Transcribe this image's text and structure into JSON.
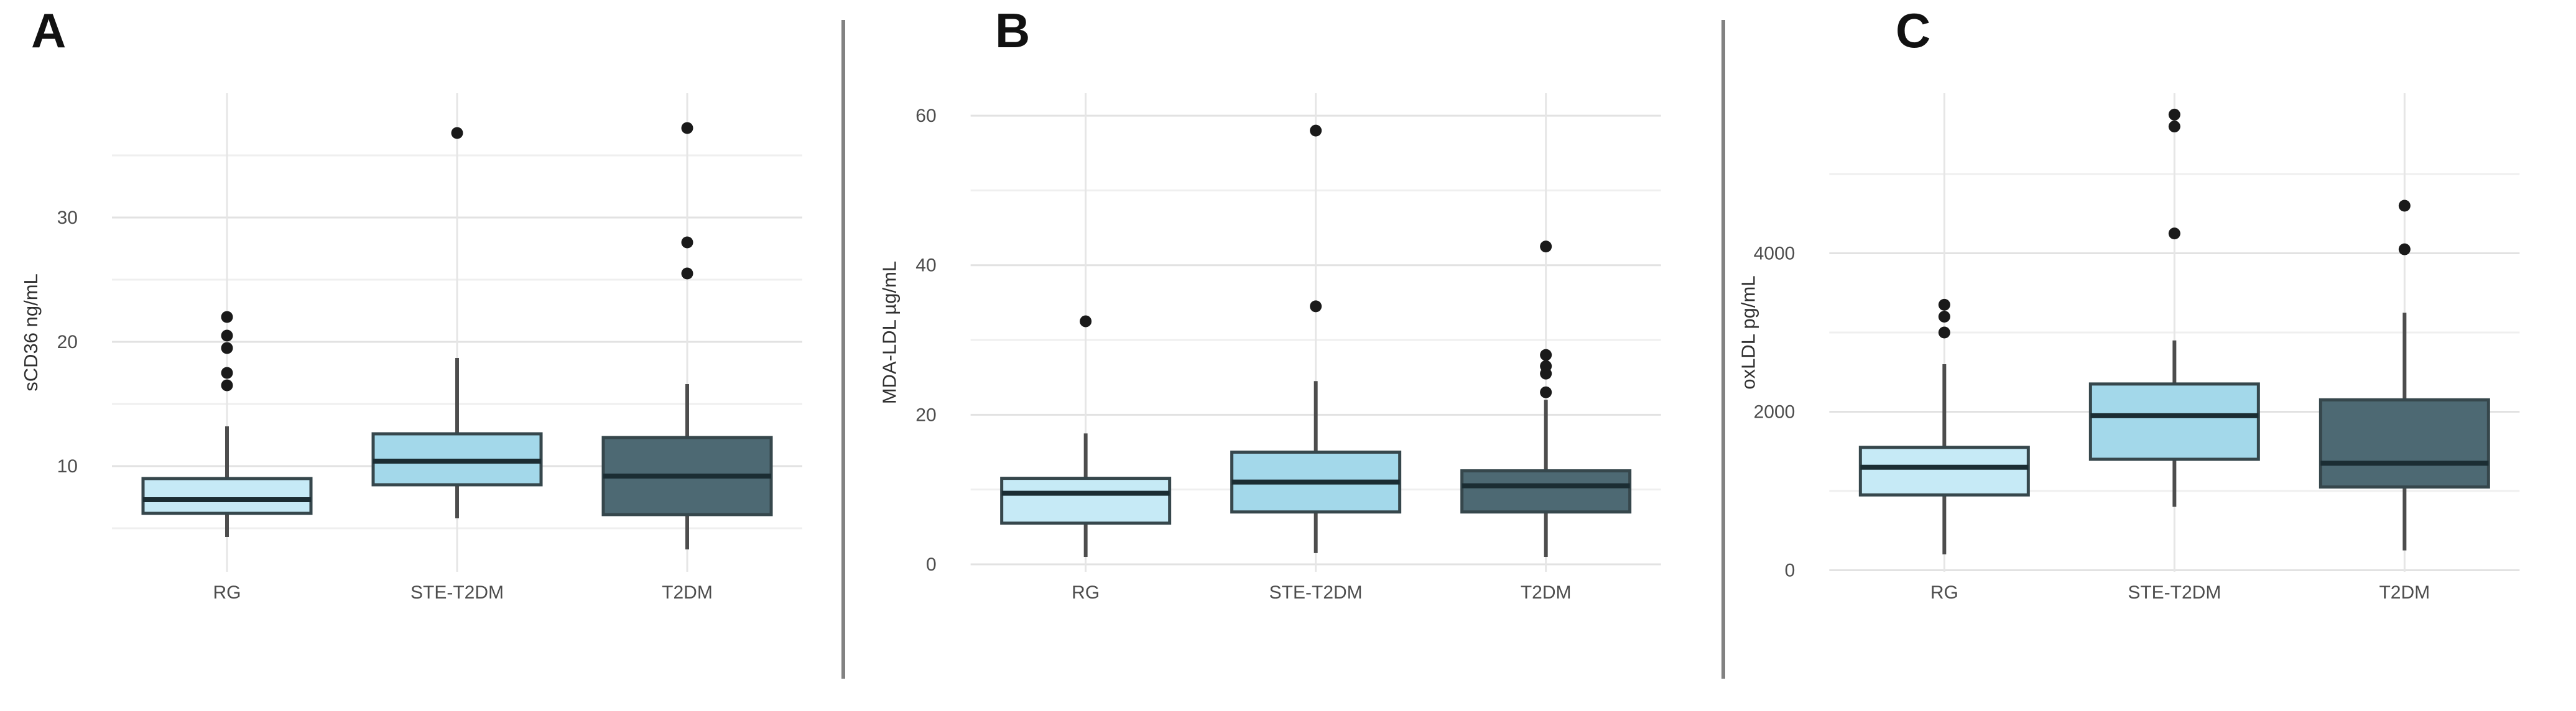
{
  "figure": {
    "background": "#ffffff",
    "divider_color": "#828282"
  },
  "colors": {
    "group_fills": [
      "#c6eaf6",
      "#a3d8ea",
      "#4d6973"
    ],
    "box_border": "#36474c",
    "median_line": "#1b2d33",
    "whisker": "#4d4d4d",
    "outlier_dot": "#1a1a1a",
    "grid_major": "#e2e2e2",
    "grid_minor": "#efefef",
    "grid_vertical": "#e6e6e6",
    "axis_text": "#4d4d4d",
    "axis_title": "#303030"
  },
  "chart_data": [
    {
      "type": "boxplot",
      "panel_label": "A",
      "ylabel": "sCD36 ng/mL",
      "categories": [
        "RG",
        "STE-T2DM",
        "T2DM"
      ],
      "yticks": [
        10,
        20,
        30
      ],
      "yticks_minor": [
        5,
        15,
        25,
        35
      ],
      "ylim": [
        1.5,
        40
      ],
      "grid": true,
      "series": [
        {
          "name": "RG",
          "whisker_low": 4.3,
          "q1": 6.2,
          "median": 7.3,
          "q3": 9.0,
          "whisker_high": 13.2,
          "outliers": [
            16.5,
            17.5,
            19.5,
            20.5,
            22
          ]
        },
        {
          "name": "STE-T2DM",
          "whisker_low": 5.8,
          "q1": 8.5,
          "median": 10.4,
          "q3": 12.6,
          "whisker_high": 18.7,
          "outliers": [
            36.8
          ]
        },
        {
          "name": "T2DM",
          "whisker_low": 3.3,
          "q1": 6.1,
          "median": 9.2,
          "q3": 12.3,
          "whisker_high": 16.6,
          "outliers": [
            25.5,
            28,
            37.2
          ]
        }
      ]
    },
    {
      "type": "boxplot",
      "panel_label": "B",
      "ylabel": "MDA-LDL µg/mL",
      "categories": [
        "RG",
        "STE-T2DM",
        "T2DM"
      ],
      "yticks": [
        0,
        20,
        40,
        60
      ],
      "yticks_minor": [
        10,
        30,
        50
      ],
      "ylim": [
        -1,
        63
      ],
      "grid": true,
      "series": [
        {
          "name": "RG",
          "whisker_low": 1.0,
          "q1": 5.5,
          "median": 9.5,
          "q3": 11.5,
          "whisker_high": 17.5,
          "outliers": [
            32.5
          ]
        },
        {
          "name": "STE-T2DM",
          "whisker_low": 1.5,
          "q1": 7.0,
          "median": 11.0,
          "q3": 15.0,
          "whisker_high": 24.5,
          "outliers": [
            34.5,
            58
          ]
        },
        {
          "name": "T2DM",
          "whisker_low": 1.0,
          "q1": 7.0,
          "median": 10.5,
          "q3": 12.5,
          "whisker_high": 22.0,
          "outliers": [
            23,
            25.5,
            26.5,
            28,
            42.5
          ]
        }
      ]
    },
    {
      "type": "boxplot",
      "panel_label": "C",
      "ylabel": "oxLDL pg/mL",
      "categories": [
        "RG",
        "STE-T2DM",
        "T2DM"
      ],
      "yticks": [
        0,
        2000,
        4000
      ],
      "yticks_minor": [
        1000,
        3000,
        5000
      ],
      "ylim": [
        -20,
        6020
      ],
      "grid": true,
      "series": [
        {
          "name": "RG",
          "whisker_low": 200,
          "q1": 950,
          "median": 1300,
          "q3": 1550,
          "whisker_high": 2600,
          "outliers": [
            3000,
            3200,
            3350
          ]
        },
        {
          "name": "STE-T2DM",
          "whisker_low": 800,
          "q1": 1400,
          "median": 1950,
          "q3": 2350,
          "whisker_high": 2900,
          "outliers": [
            4250,
            5600,
            5750
          ]
        },
        {
          "name": "T2DM",
          "whisker_low": 250,
          "q1": 1050,
          "median": 1350,
          "q3": 2150,
          "whisker_high": 3250,
          "outliers": [
            4050,
            4600
          ]
        }
      ]
    }
  ]
}
